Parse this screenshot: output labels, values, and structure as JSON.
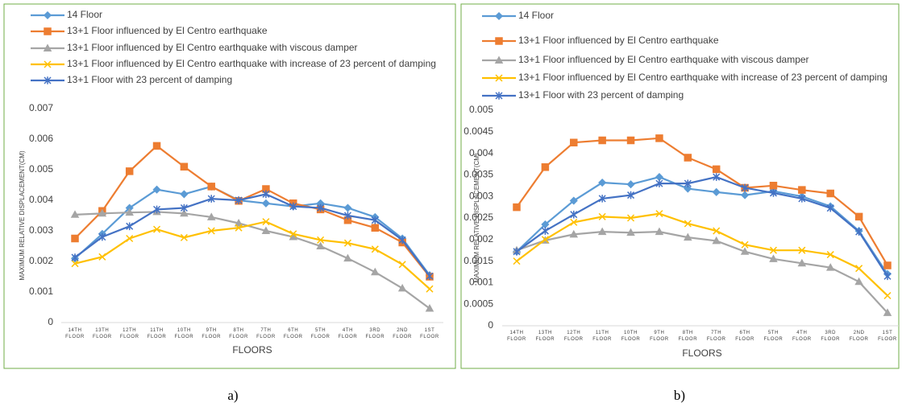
{
  "chart_data": [
    {
      "type": "line",
      "caption": "a)",
      "xlabel": "FLOORS",
      "ylabel": "MAXIMUM RELATIVE DISPLACEMENT(CM)",
      "categories": [
        "14TH FLOOR",
        "13TH FLOOR",
        "12TH FLOOR",
        "11TH FLOOR",
        "10TH FLOOR",
        "9TH FLOOR",
        "8TH FLOOR",
        "7TH FLOOR",
        "6TH FLOOR",
        "5TH FLOOR",
        "4TH FLOOR",
        "3RD FLOOR",
        "2ND FLOOR",
        "1ST FLOOR"
      ],
      "ylim": [
        0,
        0.007
      ],
      "yticks": [
        0,
        0.001,
        0.002,
        0.003,
        0.004,
        0.005,
        0.006,
        0.007
      ],
      "grid": false,
      "series": [
        {
          "name": "14 Floor",
          "color": "#5b9bd5",
          "marker": "diamond",
          "values": [
            0.0021,
            0.0029,
            0.00375,
            0.00435,
            0.0042,
            0.00445,
            0.004,
            0.0039,
            0.0038,
            0.0039,
            0.00375,
            0.00345,
            0.00275,
            0.00155
          ]
        },
        {
          "name": "13+1 Floor influenced by El Centro earthquake",
          "color": "#ed7d31",
          "marker": "square",
          "values": [
            0.00275,
            0.00365,
            0.00495,
            0.00578,
            0.0051,
            0.00445,
            0.00398,
            0.00437,
            0.0039,
            0.0037,
            0.00335,
            0.0031,
            0.00262,
            0.0015
          ]
        },
        {
          "name": "13+1 Floor influenced by El Centro earthquake with viscous damper",
          "color": "#a5a5a5",
          "marker": "triangle",
          "values": [
            0.00353,
            0.00357,
            0.0036,
            0.00362,
            0.00357,
            0.00345,
            0.00325,
            0.003,
            0.0028,
            0.0025,
            0.0021,
            0.00165,
            0.00112,
            0.00046
          ]
        },
        {
          "name": "13+1 Floor influenced by El Centro earthquake with increase of 23 percent of damping",
          "color": "#ffc000",
          "marker": "x",
          "values": [
            0.00193,
            0.00215,
            0.00275,
            0.00305,
            0.00278,
            0.003,
            0.0031,
            0.0033,
            0.0029,
            0.0027,
            0.0026,
            0.0024,
            0.0019,
            0.0011
          ]
        },
        {
          "name": "13+1 Floor with 23 percent of damping",
          "color": "#4472c4",
          "marker": "star",
          "values": [
            0.00213,
            0.0028,
            0.00315,
            0.0037,
            0.00375,
            0.00405,
            0.004,
            0.0042,
            0.0038,
            0.00375,
            0.0035,
            0.00335,
            0.0027,
            0.00152
          ]
        }
      ]
    },
    {
      "type": "line",
      "caption": "b)",
      "xlabel": "FLOORS",
      "ylabel": "MAXIMUM RELATIVE DISPLACEMENT(CM)",
      "categories": [
        "14TH FLOOR",
        "13TH FLOOR",
        "12TH FLOOR",
        "11TH FLOOR",
        "10TH FLOOR",
        "9TH FLOOR",
        "8TH FLOOR",
        "7TH FLOOR",
        "6TH FLOOR",
        "5TH FLOOR",
        "4TH FLOOR",
        "3RD FLOOR",
        "2ND FLOOR",
        "1ST FLOOR"
      ],
      "ylim": [
        0,
        0.005
      ],
      "yticks": [
        0,
        0.0005,
        0.001,
        0.0015,
        0.002,
        0.0025,
        0.003,
        0.0035,
        0.004,
        0.0045,
        0.005
      ],
      "grid": false,
      "series": [
        {
          "name": "14 Floor",
          "color": "#5b9bd5",
          "marker": "diamond",
          "values": [
            0.00172,
            0.00235,
            0.0029,
            0.00332,
            0.00328,
            0.00345,
            0.00318,
            0.0031,
            0.00303,
            0.00312,
            0.003,
            0.00277,
            0.0022,
            0.0012
          ]
        },
        {
          "name": "13+1 Floor influenced by El Centro earthquake",
          "color": "#ed7d31",
          "marker": "square",
          "values": [
            0.00275,
            0.00368,
            0.00425,
            0.0043,
            0.0043,
            0.00435,
            0.0039,
            0.00363,
            0.0032,
            0.00325,
            0.00315,
            0.00307,
            0.00253,
            0.0014
          ]
        },
        {
          "name": "13+1 Floor influenced by El Centro earthquake with viscous damper",
          "color": "#a5a5a5",
          "marker": "triangle",
          "values": [
            0.00175,
            0.00198,
            0.00212,
            0.00218,
            0.00216,
            0.00218,
            0.00205,
            0.00197,
            0.00172,
            0.00155,
            0.00145,
            0.00135,
            0.00102,
            0.0003
          ]
        },
        {
          "name": "13+1 Floor influenced by El Centro earthquake with increase of 23 percent of damping",
          "color": "#ffc000",
          "marker": "x",
          "values": [
            0.0015,
            0.002,
            0.0024,
            0.00253,
            0.0025,
            0.0026,
            0.00237,
            0.0022,
            0.00188,
            0.00175,
            0.00175,
            0.00165,
            0.00133,
            0.0007
          ]
        },
        {
          "name": "13+1 Floor with 23 percent of damping",
          "color": "#4472c4",
          "marker": "star",
          "values": [
            0.00172,
            0.0022,
            0.00258,
            0.00295,
            0.00303,
            0.0033,
            0.0033,
            0.00345,
            0.0032,
            0.00308,
            0.00295,
            0.00273,
            0.00218,
            0.00115
          ]
        }
      ]
    }
  ]
}
